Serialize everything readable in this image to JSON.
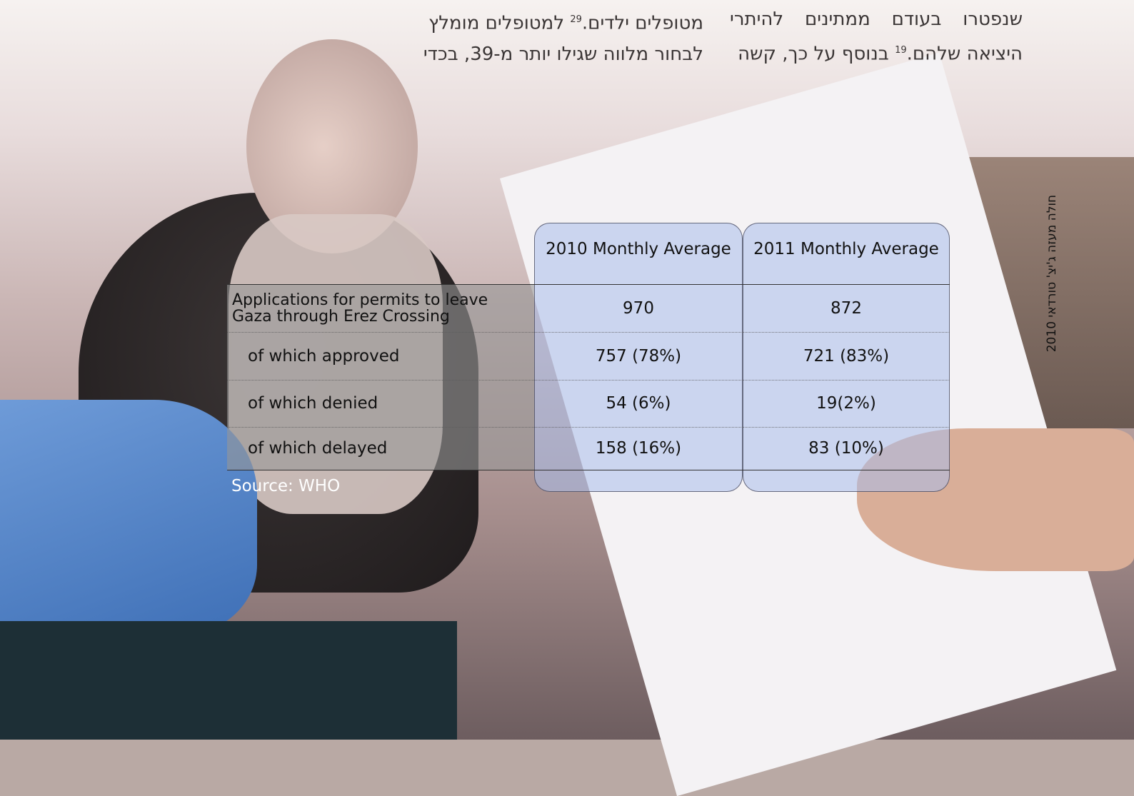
{
  "text": {
    "right_column": {
      "line_1": "שנפטרו בעודם ממתינים להיתרי",
      "line_2_before": "היציאה שלהם.",
      "line_2_note": "19",
      "line_2_after": " בנוסף על כך, קשה"
    },
    "left_column": {
      "line_1_before": "מטופלים ילדים.",
      "line_1_note": "29",
      "line_1_after": " למטופלים מומלץ",
      "line_2": "לבחור מלווה שגילו יותר מ-39, בכדי"
    }
  },
  "photo_caption": "חולה מעזה ג'יצ' טורדאי 2010",
  "table": {
    "headers": [
      "2010 Monthly Average",
      "2011 Monthly Average"
    ],
    "rows": [
      [
        "Applications for permits to leave Gaza through Erez Crossing",
        "970",
        "872"
      ],
      [
        "of which approved",
        "757 (78%)",
        "721 (83%)"
      ],
      [
        "of which denied",
        "54 (6%)",
        "19(2%)"
      ],
      [
        "of which delayed",
        "158 (16%)",
        "83 (10%)"
      ]
    ],
    "source": "Source: WHO"
  }
}
